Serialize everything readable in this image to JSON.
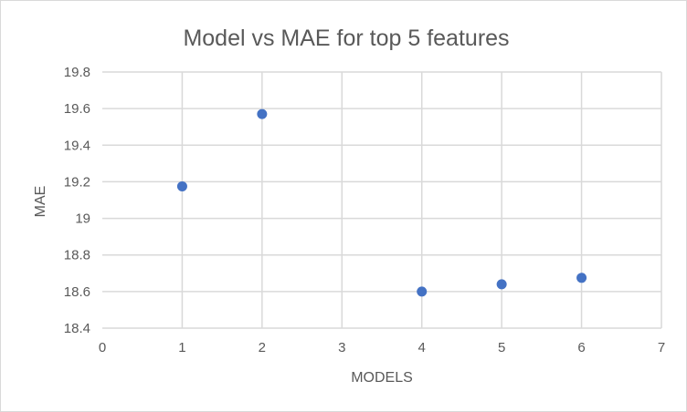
{
  "chart_data": {
    "type": "scatter",
    "title": "Model vs MAE for top 5 features",
    "xlabel": "MODELS",
    "ylabel": "MAE",
    "xlim": [
      0,
      7
    ],
    "ylim": [
      18.4,
      19.8
    ],
    "x_ticks": [
      "0",
      "1",
      "2",
      "3",
      "4",
      "5",
      "6",
      "7"
    ],
    "y_ticks": [
      "18.4",
      "18.6",
      "18.8",
      "19",
      "19.2",
      "19.4",
      "19.6",
      "19.8"
    ],
    "grid": true,
    "legend": "none",
    "marker_color": "#4472c4",
    "points": [
      {
        "x": 1,
        "y": 19.175
      },
      {
        "x": 2,
        "y": 19.57
      },
      {
        "x": 4,
        "y": 18.6
      },
      {
        "x": 5,
        "y": 18.64
      },
      {
        "x": 6,
        "y": 18.675
      }
    ]
  }
}
